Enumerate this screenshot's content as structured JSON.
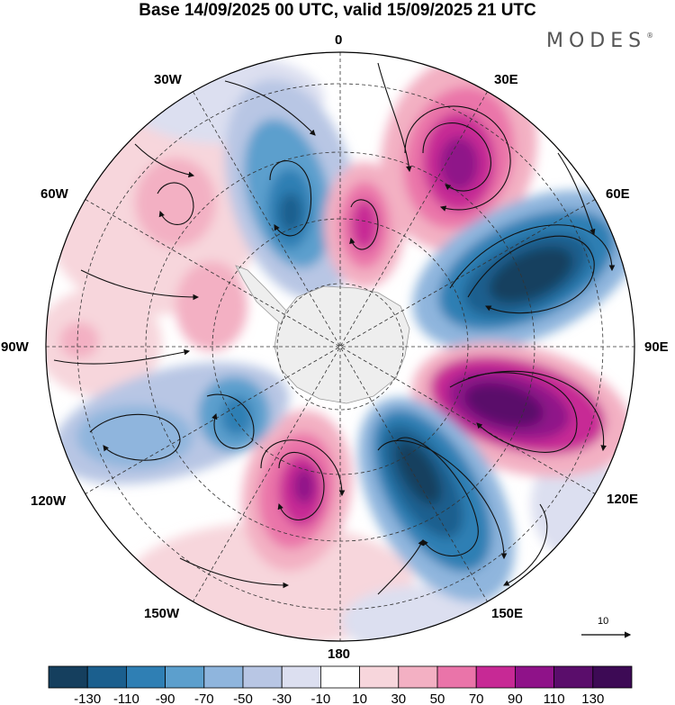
{
  "title": "Base 14/09/2025 00 UTC, valid 15/09/2025 21 UTC",
  "brand": "MODES",
  "brand_mark": "®",
  "longitude_labels": {
    "lon_0": "0",
    "lon_30e": "30E",
    "lon_60e": "60E",
    "lon_90e": "90E",
    "lon_120e": "120E",
    "lon_150e": "150E",
    "lon_180": "180",
    "lon_150w": "150W",
    "lon_120w": "120W",
    "lon_90w": "90W",
    "lon_60w": "60W",
    "lon_30w": "30W"
  },
  "vector_reference": {
    "value": "10"
  },
  "colorbar": {
    "levels": [
      -130,
      -110,
      -90,
      -70,
      -50,
      -30,
      -10,
      10,
      30,
      50,
      70,
      90,
      110,
      130
    ],
    "level_labels": [
      "-130",
      "-110",
      "-90",
      "-70",
      "-50",
      "-30",
      "-10",
      "10",
      "30",
      "50",
      "70",
      "90",
      "110",
      "130"
    ],
    "colors": [
      "#153f5e",
      "#1b5f8e",
      "#2f7fb4",
      "#5c9fcd",
      "#8fb5dd",
      "#b8c6e4",
      "#dcdff0",
      "#ffffff",
      "#f7d6dc",
      "#f3b0c3",
      "#ea74a9",
      "#c72995",
      "#8f1289",
      "#5a0d6b",
      "#3d0a55"
    ]
  },
  "colors": {
    "ocean_neutral": "#ffffff",
    "antarctica_fill": "#eeeeee",
    "antarctica_edge": "#999999",
    "graticule": "#333333",
    "streamline": "#111111"
  }
}
